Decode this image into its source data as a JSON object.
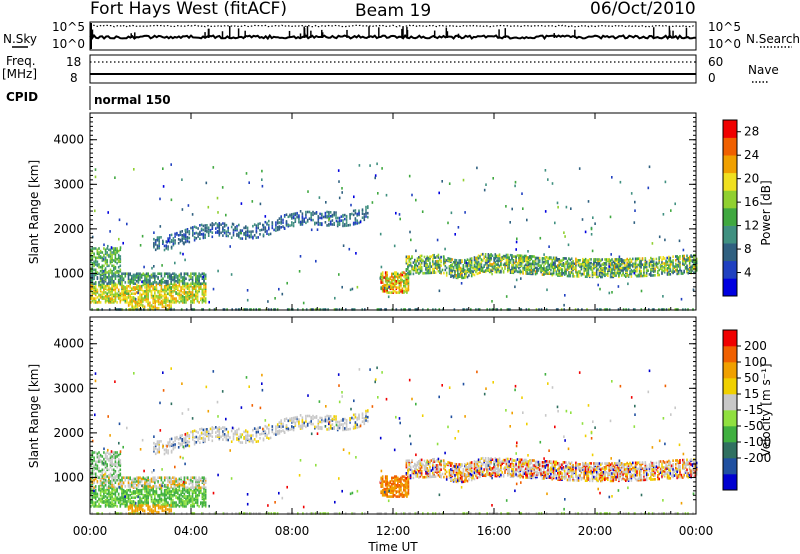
{
  "header": {
    "station": "Fort Hays West (fitACF)",
    "beam": "Beam 19",
    "date": "06/Oct/2010"
  },
  "strips": {
    "nsky_label": "N.Sky",
    "nsearch_label": "N.Search",
    "nsky_ticks": [
      "10^5",
      "10^0"
    ],
    "nsearch_ticks": [
      "10^5",
      "10^0"
    ],
    "freq_label": "Freq.",
    "freq_unit": "[MHz]",
    "freq_ticks": [
      "18",
      "8"
    ],
    "nave_label": "Nave",
    "nave_ticks": [
      "60",
      "0"
    ],
    "cpid_label": "CPID",
    "cpid_value": "normal 150"
  },
  "chart_data": [
    {
      "type": "heatmap",
      "quantity": "power",
      "ylabel": "Slant Range [km]",
      "xlabel": "",
      "x_ticks": [
        "00:00",
        "04:00",
        "08:00",
        "12:00",
        "16:00",
        "20:00",
        "00:00"
      ],
      "y_ticks": [
        "1000",
        "2000",
        "3000",
        "4000"
      ],
      "xlim_hours": [
        0,
        24
      ],
      "ylim_km": [
        180,
        4600
      ],
      "colorbar": {
        "label": "Power [dB]",
        "ticks": [
          "4",
          "8",
          "12",
          "16",
          "20",
          "24",
          "28"
        ],
        "range": [
          0,
          30
        ],
        "colors": [
          "#0000e0",
          "#2040c0",
          "#306080",
          "#409080",
          "#40a840",
          "#90d030",
          "#f0e020",
          "#f0a000",
          "#f06000",
          "#f00000"
        ]
      },
      "echo_regions": [
        {
          "t": [
            0.0,
            4.6
          ],
          "r": [
            300,
            1300
          ],
          "note": "near-range band"
        },
        {
          "t": [
            2.0,
            11.0
          ],
          "r": [
            1600,
            2600
          ],
          "note": "far-range ramp"
        },
        {
          "t": [
            11.5,
            12.6
          ],
          "r": [
            600,
            1100
          ],
          "note": "near-range patch"
        },
        {
          "t": [
            12.5,
            24.0
          ],
          "r": [
            900,
            1500
          ],
          "note": "afternoon band"
        }
      ]
    },
    {
      "type": "heatmap",
      "quantity": "velocity",
      "ylabel": "Slant Range [km]",
      "xlabel": "Time UT",
      "x_ticks": [
        "00:00",
        "04:00",
        "08:00",
        "12:00",
        "16:00",
        "20:00",
        "00:00"
      ],
      "y_ticks": [
        "1000",
        "2000",
        "3000",
        "4000"
      ],
      "xlim_hours": [
        0,
        24
      ],
      "ylim_km": [
        180,
        4600
      ],
      "colorbar": {
        "label": "Velocity [m s⁻¹]",
        "ticks": [
          "200",
          "100",
          "50",
          "15",
          "-15",
          "-50",
          "-100",
          "-200"
        ],
        "colors": [
          "#0000d0",
          "#2050a0",
          "#307060",
          "#40b040",
          "#90e040",
          "#c8c8c8",
          "#f0d000",
          "#f0a000",
          "#f06000",
          "#f00000"
        ]
      }
    }
  ]
}
